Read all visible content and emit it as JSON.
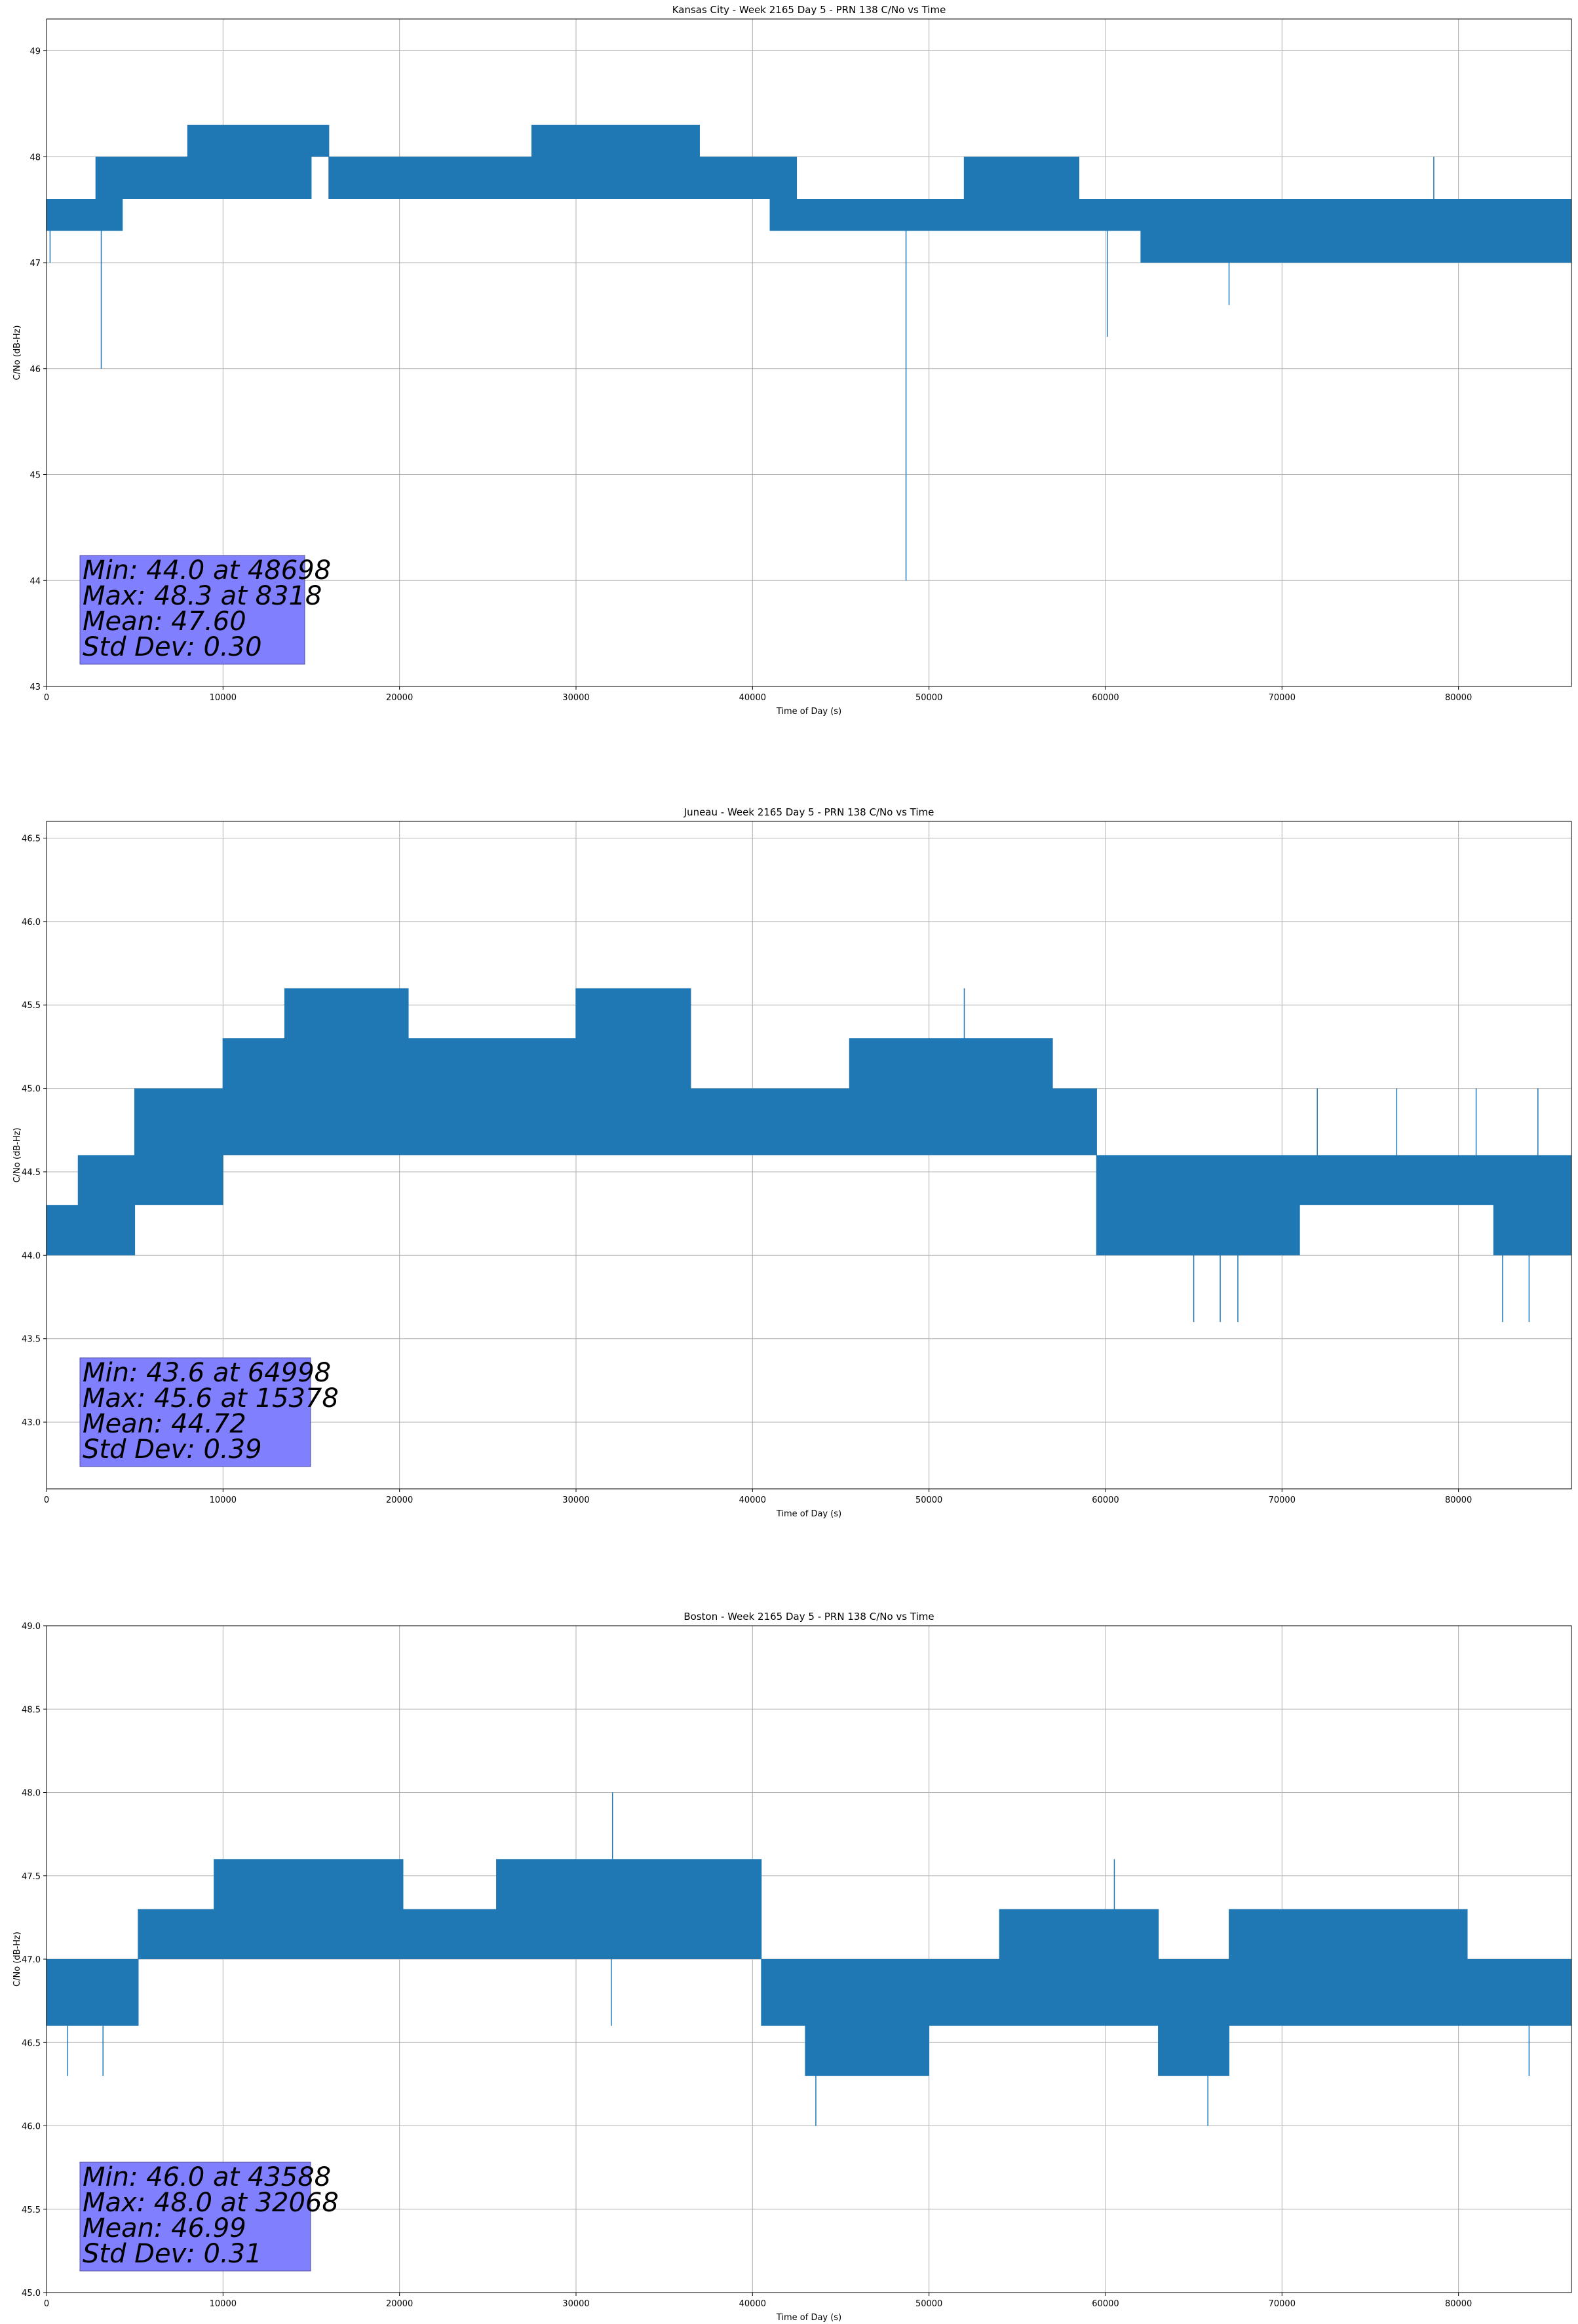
{
  "chart_data": [
    {
      "type": "line",
      "title": "Kansas City - Week 2165 Day 5 - PRN 138 C/No vs Time",
      "xlabel": "Time of Day (s)",
      "ylabel": "C/No (dB-Hz)",
      "xlim": [
        0,
        86400
      ],
      "ylim": [
        43,
        49.3
      ],
      "xticks": [
        0,
        10000,
        20000,
        30000,
        40000,
        50000,
        60000,
        70000,
        80000
      ],
      "yticks": [
        43,
        44,
        45,
        46,
        47,
        48,
        49
      ],
      "ytick_labels": [
        "43",
        "44",
        "45",
        "46",
        "47",
        "48",
        "49"
      ],
      "grid": true,
      "series_color": "#1f77b4",
      "stats_box_color": "#8080ff",
      "stats_lines": [
        "Min: 44.0 at 48698",
        "Max: 48.3 at 8318",
        "Mean: 47.60",
        "Std Dev: 0.30"
      ],
      "series": [
        {
          "step_s": 10,
          "segments": [
            {
              "x": [
                0,
                2800
              ],
              "low": 47.3,
              "high": 47.6
            },
            {
              "x": [
                2800,
                4300
              ],
              "low": 47.3,
              "high": 48.0
            },
            {
              "x": [
                4300,
                8000
              ],
              "low": 47.6,
              "high": 48.0
            },
            {
              "x": [
                8000,
                15000
              ],
              "low": 47.6,
              "high": 48.3
            },
            {
              "x": [
                15000,
                16000
              ],
              "low": 48.0,
              "high": 48.3
            },
            {
              "x": [
                16000,
                21500
              ],
              "low": 47.6,
              "high": 48.0
            },
            {
              "x": [
                21500,
                27500
              ],
              "low": 47.6,
              "high": 48.0
            },
            {
              "x": [
                27500,
                37000
              ],
              "low": 47.6,
              "high": 48.3
            },
            {
              "x": [
                37000,
                41000
              ],
              "low": 47.6,
              "high": 48.0
            },
            {
              "x": [
                41000,
                42500
              ],
              "low": 47.3,
              "high": 48.0
            },
            {
              "x": [
                42500,
                52000
              ],
              "low": 47.3,
              "high": 47.6
            },
            {
              "x": [
                52000,
                58500
              ],
              "low": 47.3,
              "high": 48.0
            },
            {
              "x": [
                58500,
                62000
              ],
              "low": 47.3,
              "high": 47.6
            },
            {
              "x": [
                62000,
                69000
              ],
              "low": 47.0,
              "high": 47.6
            },
            {
              "x": [
                69000,
                72000
              ],
              "low": 47.0,
              "high": 47.6
            },
            {
              "x": [
                72000,
                86400
              ],
              "low": 47.0,
              "high": 47.6
            }
          ],
          "spikes": [
            {
              "x": 3100,
              "y": 46.0
            },
            {
              "x": 48698,
              "y": 44.0
            },
            {
              "x": 60100,
              "y": 46.3
            },
            {
              "x": 67000,
              "y": 46.6
            },
            {
              "x": 8318,
              "y": 48.3
            },
            {
              "x": 78600,
              "y": 48.0
            },
            {
              "x": 200,
              "y": 47.0
            }
          ]
        }
      ]
    },
    {
      "type": "line",
      "title": "Juneau - Week 2165 Day 5 - PRN 138 C/No vs Time",
      "xlabel": "Time of Day (s)",
      "ylabel": "C/No (dB-Hz)",
      "xlim": [
        0,
        86400
      ],
      "ylim": [
        42.6,
        46.6
      ],
      "xticks": [
        0,
        10000,
        20000,
        30000,
        40000,
        50000,
        60000,
        70000,
        80000
      ],
      "yticks": [
        43.0,
        43.5,
        44.0,
        44.5,
        45.0,
        45.5,
        46.0,
        46.5
      ],
      "ytick_labels": [
        "43.0",
        "43.5",
        "44.0",
        "44.5",
        "45.0",
        "45.5",
        "46.0",
        "46.5"
      ],
      "grid": true,
      "series_color": "#1f77b4",
      "stats_box_color": "#8080ff",
      "stats_lines": [
        "Min: 43.6 at 64998",
        "Max: 45.6 at 15378",
        "Mean: 44.72",
        "Std Dev: 0.39"
      ],
      "series": [
        {
          "step_s": 10,
          "segments": [
            {
              "x": [
                0,
                1800
              ],
              "low": 44.0,
              "high": 44.3
            },
            {
              "x": [
                1800,
                5000
              ],
              "low": 44.0,
              "high": 44.6
            },
            {
              "x": [
                5000,
                10000
              ],
              "low": 44.3,
              "high": 45.0
            },
            {
              "x": [
                10000,
                13500
              ],
              "low": 44.6,
              "high": 45.3
            },
            {
              "x": [
                13500,
                20500
              ],
              "low": 44.6,
              "high": 45.6
            },
            {
              "x": [
                20500,
                30000
              ],
              "low": 44.6,
              "high": 45.3
            },
            {
              "x": [
                30000,
                36500
              ],
              "low": 44.6,
              "high": 45.6
            },
            {
              "x": [
                36500,
                45500
              ],
              "low": 44.6,
              "high": 45.0
            },
            {
              "x": [
                45500,
                57000
              ],
              "low": 44.6,
              "high": 45.3
            },
            {
              "x": [
                57000,
                59500
              ],
              "low": 44.6,
              "high": 45.0
            },
            {
              "x": [
                59500,
                66000
              ],
              "low": 44.0,
              "high": 44.6
            },
            {
              "x": [
                66000,
                71000
              ],
              "low": 44.0,
              "high": 44.6
            },
            {
              "x": [
                71000,
                82000
              ],
              "low": 44.3,
              "high": 44.6
            },
            {
              "x": [
                82000,
                86400
              ],
              "low": 44.0,
              "high": 44.6
            }
          ],
          "spikes": [
            {
              "x": 15378,
              "y": 45.6
            },
            {
              "x": 30500,
              "y": 45.6
            },
            {
              "x": 34500,
              "y": 45.6
            },
            {
              "x": 52000,
              "y": 45.6
            },
            {
              "x": 64998,
              "y": 43.6
            },
            {
              "x": 66500,
              "y": 43.6
            },
            {
              "x": 67500,
              "y": 43.6
            },
            {
              "x": 82500,
              "y": 43.6
            },
            {
              "x": 84000,
              "y": 43.6
            },
            {
              "x": 72000,
              "y": 45.0
            },
            {
              "x": 76500,
              "y": 45.0
            },
            {
              "x": 81000,
              "y": 45.0
            },
            {
              "x": 84500,
              "y": 45.0
            }
          ]
        }
      ]
    },
    {
      "type": "line",
      "title": "Boston - Week 2165 Day 5 - PRN 138 C/No vs Time",
      "xlabel": "Time of Day (s)",
      "ylabel": "C/No (dB-Hz)",
      "xlim": [
        0,
        86400
      ],
      "ylim": [
        45.0,
        49.0
      ],
      "xticks": [
        0,
        10000,
        20000,
        30000,
        40000,
        50000,
        60000,
        70000,
        80000
      ],
      "yticks": [
        45.0,
        45.5,
        46.0,
        46.5,
        47.0,
        47.5,
        48.0,
        48.5,
        49.0
      ],
      "ytick_labels": [
        "45.0",
        "45.5",
        "46.0",
        "46.5",
        "47.0",
        "47.5",
        "48.0",
        "48.5",
        "49.0"
      ],
      "grid": true,
      "series_color": "#1f77b4",
      "stats_box_color": "#8080ff",
      "stats_lines": [
        "Min: 46.0 at 43588",
        "Max: 48.0 at 32068",
        "Mean: 46.99",
        "Std Dev: 0.31"
      ],
      "series": [
        {
          "step_s": 10,
          "segments": [
            {
              "x": [
                0,
                5200
              ],
              "low": 46.6,
              "high": 47.0
            },
            {
              "x": [
                5200,
                9500
              ],
              "low": 47.0,
              "high": 47.3
            },
            {
              "x": [
                9500,
                20200
              ],
              "low": 47.0,
              "high": 47.6
            },
            {
              "x": [
                20200,
                25500
              ],
              "low": 47.0,
              "high": 47.3
            },
            {
              "x": [
                25500,
                40500
              ],
              "low": 47.0,
              "high": 47.6
            },
            {
              "x": [
                40500,
                43000
              ],
              "low": 46.6,
              "high": 47.0
            },
            {
              "x": [
                43000,
                50000
              ],
              "low": 46.3,
              "high": 47.0
            },
            {
              "x": [
                50000,
                54000
              ],
              "low": 46.6,
              "high": 47.0
            },
            {
              "x": [
                54000,
                63000
              ],
              "low": 46.6,
              "high": 47.3
            },
            {
              "x": [
                63000,
                67000
              ],
              "low": 46.3,
              "high": 47.0
            },
            {
              "x": [
                67000,
                80500
              ],
              "low": 46.6,
              "high": 47.3
            },
            {
              "x": [
                80500,
                86400
              ],
              "low": 46.6,
              "high": 47.0
            }
          ],
          "spikes": [
            {
              "x": 32068,
              "y": 48.0
            },
            {
              "x": 60500,
              "y": 47.6
            },
            {
              "x": 43588,
              "y": 46.0
            },
            {
              "x": 65800,
              "y": 46.0
            },
            {
              "x": 32000,
              "y": 46.6
            },
            {
              "x": 1200,
              "y": 46.3
            },
            {
              "x": 3200,
              "y": 46.3
            },
            {
              "x": 84000,
              "y": 46.3
            }
          ]
        }
      ]
    }
  ]
}
